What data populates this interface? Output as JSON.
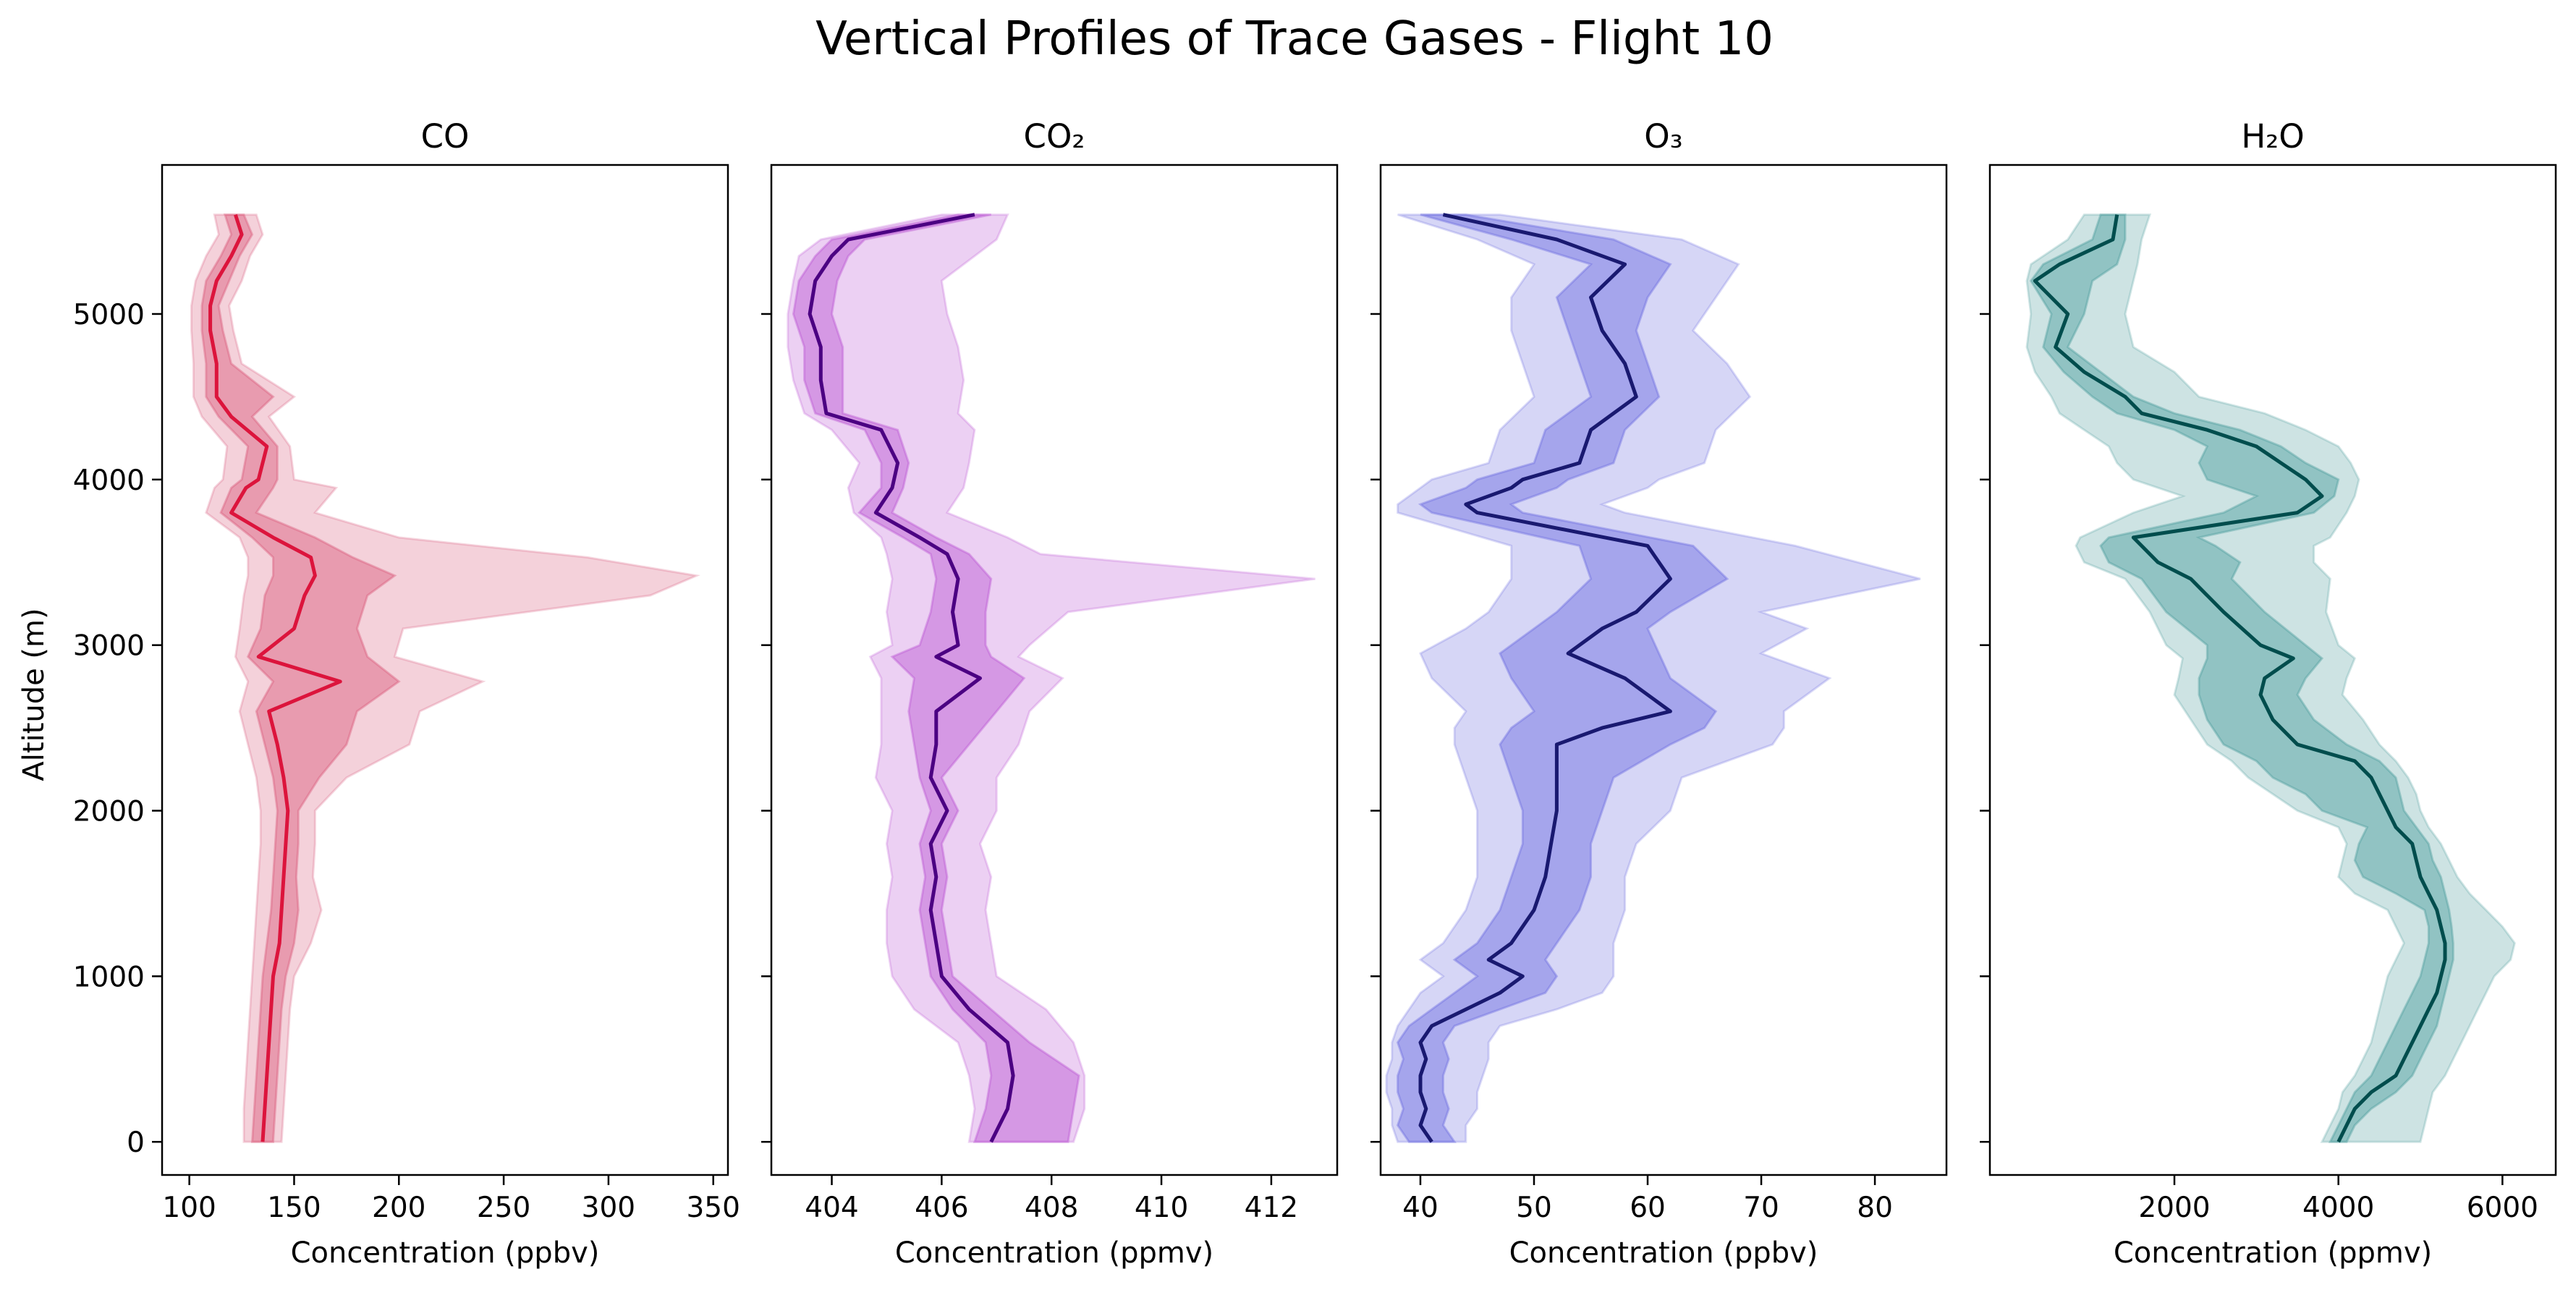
{
  "figure": {
    "title": "Vertical Profiles of Trace Gases - Flight 10",
    "ylabel": "Altitude (m)"
  },
  "chart_data": [
    {
      "type": "line",
      "title": "CO",
      "xlabel": "Concentration (ppbv)",
      "ylabel": "Altitude (m)",
      "xlim": [
        87,
        357
      ],
      "ylim": [
        -200,
        5900
      ],
      "xticks": [
        100,
        150,
        200,
        250,
        300,
        350
      ],
      "yticks": [
        0,
        1000,
        2000,
        3000,
        4000,
        5000
      ],
      "colors": {
        "line": "#dc143c",
        "band": "#d9587a"
      },
      "altitude": [
        0,
        200,
        400,
        600,
        800,
        1000,
        1200,
        1400,
        1600,
        1800,
        2000,
        2200,
        2400,
        2600,
        2780,
        2930,
        3100,
        3300,
        3420,
        3530,
        3650,
        3800,
        3950,
        4000,
        4200,
        4380,
        4500,
        4700,
        4900,
        5050,
        5200,
        5350,
        5480,
        5600
      ],
      "mean": [
        135,
        136,
        137,
        138,
        139,
        140,
        143,
        144,
        145,
        146,
        147,
        145,
        142,
        138,
        172,
        133,
        150,
        155,
        160,
        158,
        140,
        120,
        127,
        133,
        137,
        120,
        113,
        113,
        110,
        110,
        113,
        120,
        125,
        122
      ],
      "inner_low": [
        130,
        131,
        132,
        133,
        134,
        135,
        137,
        139,
        140,
        141,
        142,
        140,
        136,
        132,
        140,
        128,
        134,
        136,
        140,
        140,
        130,
        115,
        120,
        125,
        128,
        114,
        108,
        108,
        106,
        106,
        108,
        115,
        120,
        117
      ],
      "inner_high": [
        140,
        141,
        142,
        143,
        144,
        146,
        150,
        152,
        151,
        152,
        152,
        162,
        175,
        180,
        200,
        185,
        180,
        185,
        198,
        178,
        160,
        132,
        140,
        142,
        142,
        130,
        140,
        120,
        116,
        114,
        119,
        124,
        130,
        126
      ],
      "outer_low": [
        126,
        126,
        127,
        128,
        129,
        130,
        131,
        132,
        133,
        134,
        134,
        132,
        128,
        124,
        128,
        122,
        124,
        126,
        128,
        128,
        124,
        108,
        112,
        116,
        118,
        106,
        102,
        102,
        101,
        101,
        103,
        108,
        114,
        112
      ],
      "outer_high": [
        144,
        145,
        146,
        147,
        148,
        150,
        158,
        163,
        159,
        160,
        160,
        175,
        205,
        210,
        240,
        198,
        202,
        320,
        342,
        290,
        200,
        160,
        170,
        150,
        148,
        138,
        150,
        125,
        121,
        119,
        125,
        129,
        135,
        132
      ]
    },
    {
      "type": "line",
      "title": "CO₂",
      "xlabel": "Concentration (ppmv)",
      "ylabel": "Altitude (m)",
      "xlim": [
        402.9,
        413.2
      ],
      "ylim": [
        -200,
        5900
      ],
      "xticks": [
        404,
        406,
        408,
        410,
        412
      ],
      "yticks": [
        0,
        1000,
        2000,
        3000,
        4000,
        5000
      ],
      "colors": {
        "line": "#4b0082",
        "band": "#ba55d3"
      },
      "altitude": [
        0,
        200,
        400,
        600,
        800,
        1000,
        1200,
        1400,
        1600,
        1800,
        2000,
        2200,
        2400,
        2600,
        2800,
        2930,
        3000,
        3200,
        3400,
        3550,
        3650,
        3800,
        3950,
        4100,
        4300,
        4400,
        4600,
        4800,
        5000,
        5200,
        5350,
        5450,
        5600
      ],
      "mean": [
        406.9,
        407.2,
        407.3,
        407.2,
        406.5,
        406.0,
        405.9,
        405.8,
        405.9,
        405.8,
        406.1,
        405.8,
        405.9,
        405.9,
        406.7,
        405.9,
        406.3,
        406.2,
        406.3,
        406.1,
        405.6,
        404.8,
        405.1,
        405.2,
        404.9,
        403.9,
        403.8,
        403.8,
        403.6,
        403.7,
        404.0,
        404.3,
        406.6
      ],
      "inner_low": [
        406.6,
        406.8,
        406.9,
        406.8,
        406.2,
        405.8,
        405.7,
        405.6,
        405.7,
        405.6,
        405.8,
        405.6,
        405.5,
        405.4,
        405.5,
        405.1,
        405.6,
        405.8,
        405.9,
        405.8,
        405.3,
        404.5,
        404.9,
        404.9,
        404.6,
        403.7,
        403.5,
        403.5,
        403.3,
        403.4,
        403.7,
        404.0,
        406.3
      ],
      "inner_high": [
        408.3,
        408.4,
        408.5,
        407.6,
        406.9,
        406.2,
        406.1,
        406.0,
        406.1,
        406.0,
        406.3,
        406.0,
        406.5,
        407.0,
        407.5,
        406.9,
        406.8,
        406.8,
        406.9,
        406.5,
        405.9,
        405.1,
        405.3,
        405.4,
        405.2,
        404.2,
        404.2,
        404.2,
        404.0,
        404.1,
        404.3,
        404.6,
        406.9
      ],
      "outer_low": [
        406.5,
        406.6,
        406.5,
        406.3,
        405.5,
        405.1,
        405.0,
        405.0,
        405.1,
        405.0,
        405.1,
        404.8,
        404.9,
        404.9,
        404.9,
        404.7,
        405.1,
        405.0,
        405.1,
        405.0,
        404.9,
        404.4,
        404.3,
        404.5,
        404.0,
        403.5,
        403.3,
        403.2,
        403.2,
        403.3,
        403.4,
        403.8,
        406.0
      ],
      "outer_high": [
        408.4,
        408.6,
        408.6,
        408.4,
        407.9,
        407.0,
        406.9,
        406.8,
        406.9,
        406.7,
        407.0,
        407.0,
        407.4,
        407.6,
        408.2,
        407.4,
        407.6,
        408.3,
        412.8,
        407.8,
        407.2,
        406.1,
        406.4,
        406.5,
        406.6,
        406.3,
        406.4,
        406.3,
        406.1,
        406.0,
        406.6,
        407.0,
        407.2
      ]
    },
    {
      "type": "line",
      "title": "O₃",
      "xlabel": "Concentration (ppbv)",
      "ylabel": "Altitude (m)",
      "xlim": [
        36.5,
        86.3
      ],
      "ylim": [
        -200,
        5900
      ],
      "xticks": [
        40,
        50,
        60,
        70,
        80
      ],
      "yticks": [
        0,
        1000,
        2000,
        3000,
        4000,
        5000
      ],
      "colors": {
        "line": "#191970",
        "band": "#6a6ae0"
      },
      "altitude": [
        0,
        100,
        200,
        300,
        400,
        500,
        600,
        700,
        800,
        900,
        1000,
        1100,
        1200,
        1400,
        1600,
        1800,
        2000,
        2200,
        2400,
        2500,
        2600,
        2800,
        2950,
        3100,
        3200,
        3400,
        3600,
        3800,
        3850,
        3950,
        4000,
        4100,
        4300,
        4500,
        4700,
        4900,
        5100,
        5300,
        5450,
        5600
      ],
      "mean": [
        41,
        40,
        40.5,
        40,
        40,
        40.5,
        40,
        41,
        44,
        47,
        49,
        46,
        48,
        50,
        51,
        51.5,
        52,
        52,
        52,
        56,
        62,
        58,
        53,
        56,
        59,
        62,
        60,
        45,
        44,
        48,
        49,
        54,
        55,
        59,
        58,
        56,
        55,
        58,
        52,
        42
      ],
      "inner_low": [
        39,
        38,
        38.5,
        38,
        38,
        38.5,
        38,
        39,
        41,
        43,
        45,
        43,
        45,
        47,
        48,
        49,
        49,
        48,
        47,
        48,
        50,
        48,
        47,
        50,
        52,
        55,
        54,
        41,
        40,
        44,
        45,
        50,
        51,
        55,
        54,
        53,
        52,
        55,
        48,
        40
      ],
      "inner_high": [
        43,
        42,
        42.5,
        42,
        42,
        42.5,
        42,
        43,
        47,
        51,
        52,
        51,
        52,
        54,
        55,
        55,
        56,
        57,
        62,
        65,
        66,
        62,
        61,
        60,
        62,
        67,
        64,
        49,
        48,
        52,
        53,
        57,
        58,
        61,
        60,
        59,
        60,
        62,
        57,
        44
      ],
      "outer_low": [
        38,
        37.5,
        37.5,
        37,
        37,
        37.5,
        37.5,
        38,
        39,
        40,
        42,
        40,
        42,
        44,
        45,
        45,
        45,
        44,
        43,
        43,
        44,
        41,
        40,
        44,
        46,
        48,
        48,
        38,
        38,
        40,
        41,
        46,
        47,
        50,
        49,
        48,
        48,
        50,
        45,
        38
      ],
      "outer_high": [
        44,
        44,
        45,
        45,
        45.5,
        46,
        46,
        47,
        52,
        56,
        57,
        57,
        57,
        58,
        58,
        59,
        62,
        63,
        71,
        72,
        72,
        76,
        70,
        74,
        70,
        84,
        73,
        58,
        56,
        60,
        61,
        65,
        66,
        69,
        67,
        64,
        66,
        68,
        63,
        47
      ]
    },
    {
      "type": "line",
      "title": "H₂O",
      "xlabel": "Concentration (ppmv)",
      "ylabel": "Altitude (m)",
      "xlim": [
        -250,
        6650
      ],
      "ylim": [
        -200,
        5900
      ],
      "xticks": [
        2000,
        4000,
        6000
      ],
      "yticks": [
        0,
        1000,
        2000,
        3000,
        4000,
        5000
      ],
      "colors": {
        "line": "#004d4d",
        "band": "#4a9b9b"
      },
      "altitude": [
        0,
        100,
        200,
        300,
        400,
        500,
        600,
        700,
        800,
        900,
        1000,
        1100,
        1200,
        1300,
        1400,
        1500,
        1600,
        1700,
        1800,
        1900,
        2000,
        2100,
        2200,
        2300,
        2400,
        2550,
        2700,
        2800,
        2920,
        3000,
        3200,
        3400,
        3500,
        3600,
        3650,
        3800,
        3900,
        4000,
        4100,
        4200,
        4300,
        4400,
        4500,
        4650,
        4800,
        5000,
        5200,
        5300,
        5450,
        5600
      ],
      "mean": [
        4000,
        4100,
        4200,
        4400,
        4700,
        4800,
        4900,
        5000,
        5100,
        5200,
        5250,
        5300,
        5300,
        5250,
        5200,
        5100,
        5000,
        4950,
        4900,
        4700,
        4600,
        4500,
        4400,
        4200,
        3500,
        3200,
        3050,
        3100,
        3450,
        3050,
        2600,
        2200,
        1800,
        1600,
        1500,
        3500,
        3800,
        3600,
        3300,
        3000,
        2400,
        1600,
        1400,
        900,
        550,
        700,
        300,
        600,
        1250,
        1300
      ],
      "inner_low": [
        3900,
        4000,
        4100,
        4200,
        4400,
        4500,
        4600,
        4700,
        4800,
        4900,
        5000,
        5050,
        5100,
        5100,
        5050,
        4700,
        4300,
        4200,
        4250,
        4350,
        3800,
        3600,
        3200,
        3000,
        2600,
        2400,
        2300,
        2300,
        2400,
        2400,
        1900,
        1600,
        1200,
        1100,
        1200,
        2600,
        3000,
        2400,
        2300,
        2400,
        2000,
        1300,
        1000,
        650,
        400,
        500,
        250,
        400,
        1000,
        1100
      ],
      "inner_high": [
        4100,
        4200,
        4400,
        4700,
        4900,
        5000,
        5100,
        5200,
        5250,
        5300,
        5350,
        5400,
        5400,
        5380,
        5350,
        5300,
        5250,
        5150,
        5100,
        4950,
        4800,
        4750,
        4700,
        4500,
        4100,
        3700,
        3500,
        3600,
        3800,
        3600,
        3100,
        2700,
        2800,
        2500,
        2300,
        3700,
        3950,
        4000,
        3600,
        3300,
        2800,
        2000,
        1500,
        1100,
        700,
        900,
        1000,
        1300,
        1400,
        1400
      ],
      "outer_low": [
        3800,
        3900,
        4000,
        4050,
        4200,
        4300,
        4400,
        4450,
        4500,
        4550,
        4600,
        4700,
        4800,
        4700,
        4600,
        4200,
        4000,
        4050,
        4100,
        4000,
        3500,
        3200,
        2900,
        2700,
        2400,
        2200,
        2000,
        2050,
        2100,
        1900,
        1700,
        1400,
        900,
        800,
        850,
        1500,
        2100,
        1500,
        1300,
        1200,
        900,
        600,
        500,
        300,
        200,
        250,
        200,
        250,
        700,
        900
      ],
      "outer_high": [
        5000,
        5050,
        5100,
        5150,
        5300,
        5400,
        5500,
        5600,
        5700,
        5800,
        5900,
        6100,
        6150,
        6000,
        5800,
        5600,
        5450,
        5350,
        5250,
        5100,
        5000,
        4950,
        4850,
        4700,
        4500,
        4300,
        4050,
        4100,
        4200,
        4000,
        3850,
        3900,
        3700,
        3700,
        3900,
        4100,
        4200,
        4250,
        4150,
        4000,
        3600,
        3100,
        2300,
        2000,
        1500,
        1400,
        1500,
        1550,
        1600,
        1700
      ]
    }
  ]
}
